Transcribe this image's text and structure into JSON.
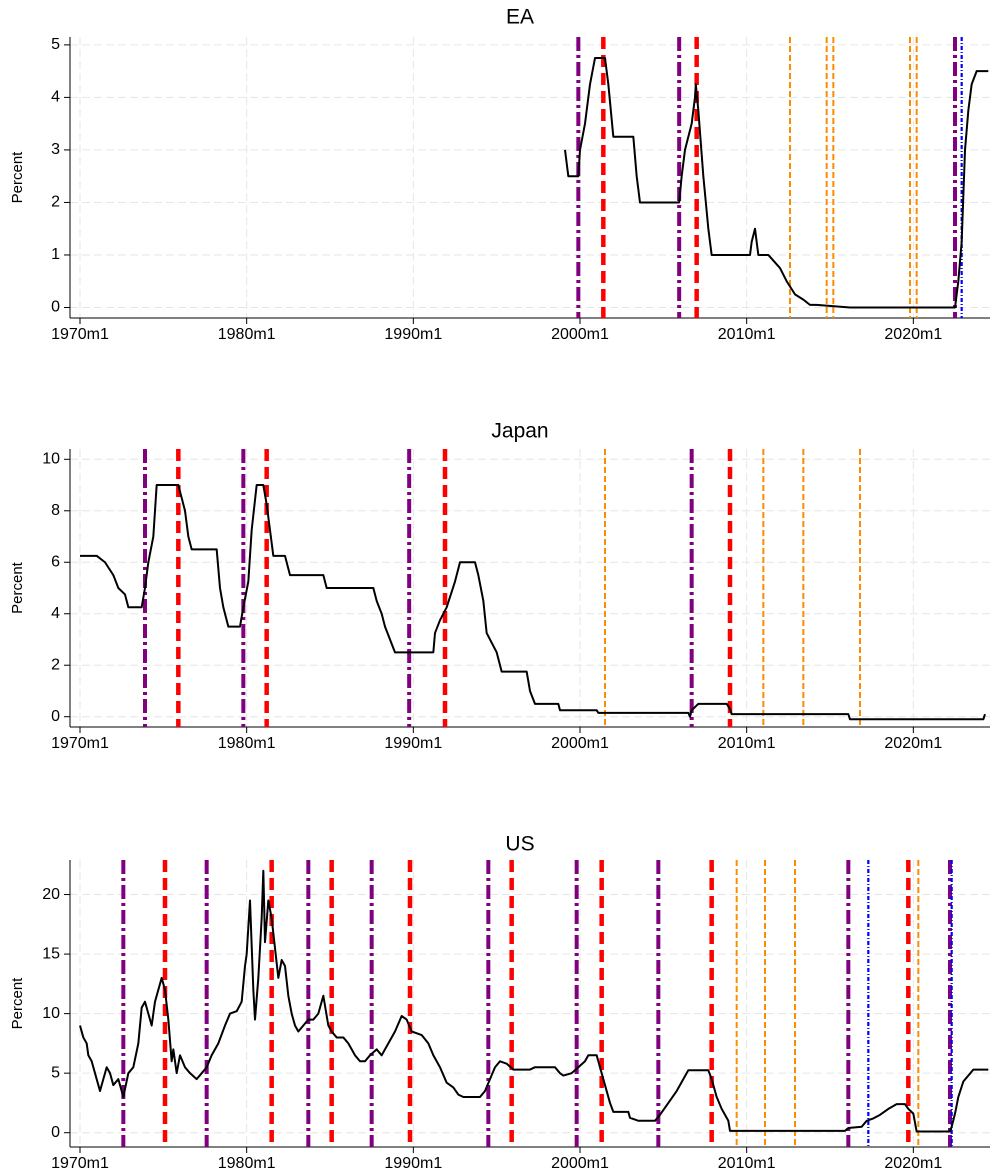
{
  "chart_data": [
    {
      "type": "line",
      "title": "EA",
      "ylabel": "Percent",
      "xlim": [
        1969.4,
        2024.6
      ],
      "ylim": [
        -0.2,
        5.15
      ],
      "xticks": [
        {
          "value": 1970,
          "label": "1970m1"
        },
        {
          "value": 1980,
          "label": "1980m1"
        },
        {
          "value": 1990,
          "label": "1990m1"
        },
        {
          "value": 2000,
          "label": "2000m1"
        },
        {
          "value": 2010,
          "label": "2010m1"
        },
        {
          "value": 2020,
          "label": "2020m1"
        }
      ],
      "yticks": [
        0,
        1,
        2,
        3,
        4,
        5
      ],
      "grid": true,
      "series": [
        {
          "color": "#000000",
          "x": [
            1999.1,
            1999.3,
            1999.9,
            2000.0,
            2000.3,
            2000.6,
            2000.9,
            2001.5,
            2001.7,
            2002.0,
            2003.2,
            2003.4,
            2003.6,
            2005.95,
            2006.1,
            2006.3,
            2006.5,
            2006.7,
            2006.8,
            2006.9,
            2006.95,
            2007.1,
            2007.4,
            2007.7,
            2007.9,
            2008.1,
            2010.2,
            2010.3,
            2010.5,
            2010.7,
            2011.3,
            2012.0,
            2012.4,
            2012.9,
            2013.4,
            2013.8,
            2014.2,
            2016.2,
            2022.5,
            2022.7,
            2022.9,
            2023.1,
            2023.3,
            2023.5,
            2023.8,
            2024.5
          ],
          "values": [
            3.0,
            2.5,
            2.5,
            3.0,
            3.5,
            4.25,
            4.75,
            4.75,
            4.25,
            3.25,
            3.25,
            2.5,
            2.0,
            2.0,
            2.5,
            3.0,
            3.25,
            3.5,
            3.75,
            4.0,
            4.25,
            3.75,
            2.5,
            1.5,
            1.0,
            1.0,
            1.0,
            1.25,
            1.5,
            1.0,
            1.0,
            0.75,
            0.5,
            0.25,
            0.15,
            0.05,
            0.05,
            0.0,
            0.0,
            0.5,
            1.25,
            3.0,
            3.75,
            4.25,
            4.5,
            4.5
          ]
        }
      ],
      "vlines": [
        {
          "color": "#800080",
          "style": "dashdot",
          "x": [
            1999.9,
            2005.95,
            2022.5
          ]
        },
        {
          "color": "#ff0000",
          "style": "dash",
          "x": [
            2001.4,
            2007.0
          ]
        },
        {
          "color": "#ff8c00",
          "style": "shortdash",
          "x": [
            2012.6,
            2014.8,
            2015.2,
            2019.8,
            2020.2
          ]
        },
        {
          "color": "#0000ff",
          "style": "dot",
          "x": [
            2022.9
          ]
        }
      ]
    },
    {
      "type": "line",
      "title": "Japan",
      "ylabel": "Percent",
      "xlim": [
        1969.4,
        2024.6
      ],
      "ylim": [
        -0.4,
        10.4
      ],
      "xticks": [
        {
          "value": 1970,
          "label": "1970m1"
        },
        {
          "value": 1980,
          "label": "1980m1"
        },
        {
          "value": 1990,
          "label": "1990m1"
        },
        {
          "value": 2000,
          "label": "2000m1"
        },
        {
          "value": 2010,
          "label": "2010m1"
        },
        {
          "value": 2020,
          "label": "2020m1"
        }
      ],
      "yticks": [
        0,
        2,
        4,
        6,
        8,
        10
      ],
      "grid": true,
      "series": [
        {
          "color": "#000000",
          "x": [
            1970.0,
            1971.0,
            1971.5,
            1972.0,
            1972.3,
            1972.7,
            1972.9,
            1973.7,
            1973.9,
            1974.1,
            1974.4,
            1974.6,
            1975.9,
            1976.1,
            1976.3,
            1976.5,
            1976.7,
            1978.2,
            1978.4,
            1978.6,
            1978.9,
            1979.6,
            1979.8,
            1980.1,
            1980.3,
            1980.6,
            1981.0,
            1981.2,
            1981.4,
            1981.6,
            1982.3,
            1982.6,
            1984.6,
            1984.8,
            1987.6,
            1987.8,
            1988.1,
            1988.3,
            1988.6,
            1988.9,
            1991.2,
            1991.3,
            1991.6,
            1992.0,
            1992.5,
            1992.8,
            1993.7,
            1993.9,
            1994.2,
            1994.4,
            1995.0,
            1995.3,
            1996.8,
            1997.0,
            1997.3,
            1998.7,
            1998.8,
            2001.0,
            2001.1,
            2006.5,
            2006.6,
            2006.7,
            2007.1,
            2008.8,
            2009.0,
            2009.1,
            2016.1,
            2016.2,
            2024.2,
            2024.3
          ],
          "values": [
            6.25,
            6.25,
            6.0,
            5.5,
            5.0,
            4.75,
            4.25,
            4.25,
            5.0,
            6.0,
            7.0,
            9.0,
            9.0,
            8.5,
            8.0,
            7.0,
            6.5,
            6.5,
            5.0,
            4.25,
            3.5,
            3.5,
            4.25,
            5.25,
            7.25,
            9.0,
            9.0,
            8.25,
            7.25,
            6.25,
            6.25,
            5.5,
            5.5,
            5.0,
            5.0,
            4.5,
            4.0,
            3.5,
            3.0,
            2.5,
            2.5,
            3.25,
            3.75,
            4.25,
            5.25,
            6.0,
            6.0,
            5.5,
            4.5,
            3.25,
            2.5,
            1.75,
            1.75,
            1.0,
            0.5,
            0.5,
            0.25,
            0.25,
            0.15,
            0.15,
            0.0,
            0.25,
            0.5,
            0.5,
            0.3,
            0.1,
            0.1,
            -0.1,
            -0.1,
            0.1
          ]
        }
      ],
      "vlines": [
        {
          "color": "#800080",
          "style": "dashdot",
          "x": [
            1973.9,
            1979.8,
            1989.75,
            2006.7
          ]
        },
        {
          "color": "#ff0000",
          "style": "dash",
          "x": [
            1975.9,
            1981.2,
            1991.9,
            2009.0
          ]
        },
        {
          "color": "#ff8c00",
          "style": "shortdash",
          "x": [
            2001.5,
            2011.0,
            2013.4,
            2016.8
          ]
        }
      ]
    },
    {
      "type": "line",
      "title": "US",
      "ylabel": "Percent",
      "xlim": [
        1969.4,
        2024.6
      ],
      "ylim": [
        -1.2,
        22.9
      ],
      "xticks": [
        {
          "value": 1970,
          "label": "1970m1"
        },
        {
          "value": 1980,
          "label": "1980m1"
        },
        {
          "value": 1990,
          "label": "1990m1"
        },
        {
          "value": 2000,
          "label": "2000m1"
        },
        {
          "value": 2010,
          "label": "2010m1"
        },
        {
          "value": 2020,
          "label": "2020m1"
        }
      ],
      "yticks": [
        0,
        5,
        10,
        15,
        20
      ],
      "grid": true,
      "series": [
        {
          "color": "#000000",
          "x": [
            1970.0,
            1970.2,
            1970.4,
            1970.5,
            1970.7,
            1970.9,
            1971.1,
            1971.2,
            1971.4,
            1971.6,
            1971.8,
            1972.0,
            1972.3,
            1972.6,
            1972.9,
            1973.2,
            1973.5,
            1973.7,
            1973.9,
            1974.1,
            1974.3,
            1974.5,
            1974.9,
            1975.1,
            1975.3,
            1975.5,
            1975.6,
            1975.8,
            1976.0,
            1976.3,
            1976.6,
            1977.0,
            1977.3,
            1977.6,
            1977.9,
            1978.3,
            1978.7,
            1979.0,
            1979.4,
            1979.7,
            1979.9,
            1980.0,
            1980.2,
            1980.4,
            1980.5,
            1980.7,
            1980.9,
            1981.0,
            1981.1,
            1981.3,
            1981.5,
            1981.7,
            1981.9,
            1982.1,
            1982.3,
            1982.5,
            1982.7,
            1982.9,
            1983.1,
            1983.4,
            1983.7,
            1984.0,
            1984.3,
            1984.6,
            1984.9,
            1985.1,
            1985.4,
            1985.8,
            1986.1,
            1986.5,
            1986.8,
            1987.1,
            1987.4,
            1987.8,
            1988.1,
            1988.5,
            1988.9,
            1989.3,
            1989.6,
            1989.9,
            1990.5,
            1990.9,
            1991.2,
            1991.6,
            1992.0,
            1992.4,
            1992.7,
            1993.0,
            1994.0,
            1994.3,
            1994.6,
            1994.9,
            1995.2,
            1995.6,
            1996.0,
            1997.0,
            1997.3,
            1998.5,
            1998.8,
            1999.0,
            1999.5,
            1999.9,
            2000.3,
            2000.5,
            2001.0,
            2001.2,
            2001.5,
            2001.8,
            2002.0,
            2002.9,
            2003.0,
            2003.5,
            2004.5,
            2004.8,
            2005.3,
            2005.8,
            2006.2,
            2006.5,
            2007.7,
            2007.9,
            2008.2,
            2008.5,
            2008.9,
            2009.0,
            2015.9,
            2016.1,
            2016.9,
            2017.2,
            2017.6,
            2018.0,
            2018.5,
            2019.0,
            2019.5,
            2019.7,
            2020.0,
            2020.2,
            2022.2,
            2022.3,
            2022.5,
            2022.7,
            2023.0,
            2023.3,
            2023.6,
            2024.5
          ],
          "values": [
            9.0,
            8.0,
            7.5,
            6.5,
            6.0,
            5.0,
            4.0,
            3.5,
            4.5,
            5.5,
            5.0,
            4.0,
            4.5,
            3.0,
            5.0,
            5.5,
            7.5,
            10.5,
            11.0,
            10.0,
            9.0,
            11.0,
            13.0,
            12.0,
            9.5,
            6.0,
            7.0,
            5.0,
            6.5,
            5.5,
            5.0,
            4.5,
            5.0,
            5.5,
            6.5,
            7.5,
            9.0,
            10.0,
            10.2,
            11.0,
            14.0,
            15.0,
            19.5,
            12.0,
            9.5,
            13.0,
            18.0,
            22.0,
            16.0,
            19.5,
            18.0,
            15.5,
            13.0,
            14.5,
            14.0,
            11.5,
            10.0,
            9.0,
            8.5,
            9.0,
            9.5,
            9.5,
            10.0,
            11.5,
            9.0,
            8.5,
            8.0,
            8.0,
            7.5,
            6.5,
            6.0,
            6.0,
            6.5,
            7.0,
            6.5,
            7.5,
            8.5,
            9.8,
            9.5,
            8.5,
            8.2,
            7.5,
            6.5,
            5.5,
            4.2,
            3.8,
            3.2,
            3.0,
            3.0,
            3.5,
            4.5,
            5.5,
            6.0,
            5.8,
            5.3,
            5.3,
            5.5,
            5.5,
            5.0,
            4.8,
            5.0,
            5.5,
            6.0,
            6.5,
            6.5,
            5.5,
            4.0,
            2.5,
            1.75,
            1.75,
            1.25,
            1.0,
            1.0,
            1.5,
            2.5,
            3.5,
            4.5,
            5.25,
            5.25,
            4.5,
            3.0,
            2.0,
            1.0,
            0.15,
            0.15,
            0.4,
            0.5,
            1.0,
            1.2,
            1.5,
            2.0,
            2.4,
            2.4,
            2.0,
            1.6,
            0.1,
            0.1,
            0.5,
            1.6,
            3.0,
            4.3,
            4.8,
            5.3,
            5.3
          ]
        }
      ],
      "vlines": [
        {
          "color": "#800080",
          "style": "dashdot",
          "x": [
            1972.6,
            1977.6,
            1983.7,
            1987.5,
            1994.5,
            1999.8,
            2004.7,
            2016.1,
            2022.2
          ]
        },
        {
          "color": "#ff0000",
          "style": "dash",
          "x": [
            1975.1,
            1981.5,
            1985.1,
            1989.8,
            1995.9,
            2001.3,
            2007.9,
            2019.7
          ]
        },
        {
          "color": "#ff8c00",
          "style": "shortdash",
          "x": [
            2009.4,
            2011.1,
            2012.9,
            2020.3
          ]
        },
        {
          "color": "#0000ff",
          "style": "dot",
          "x": [
            2017.3,
            2022.3
          ]
        }
      ]
    }
  ]
}
